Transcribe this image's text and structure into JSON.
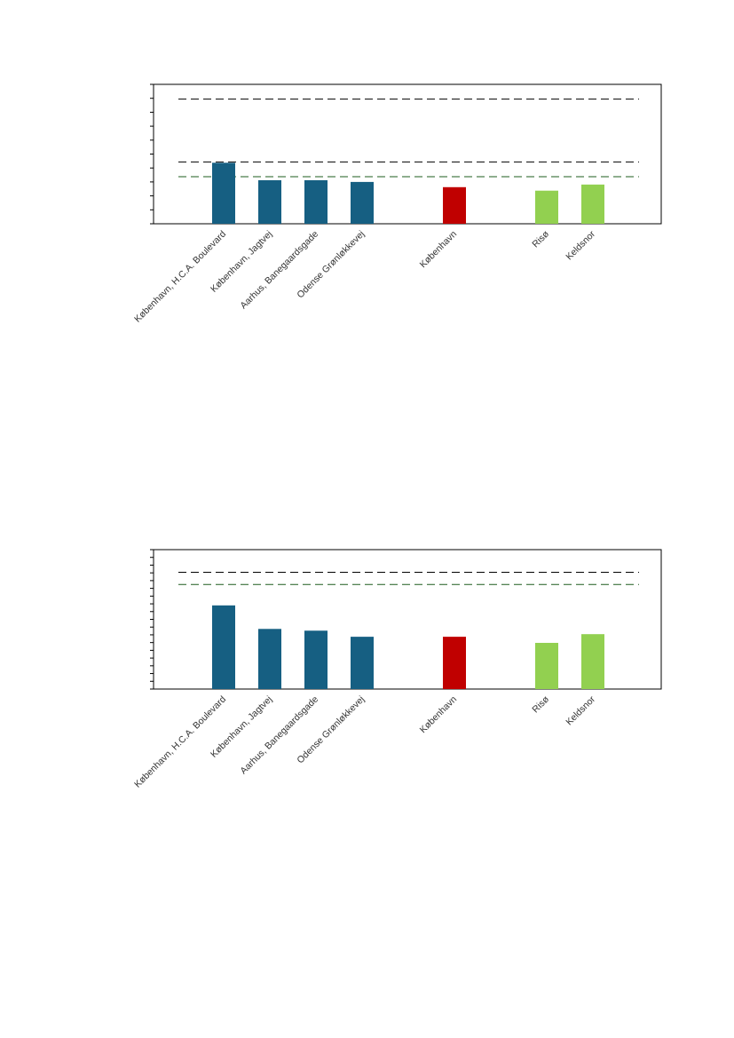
{
  "chart_data": [
    {
      "type": "bar",
      "categories": [
        "København, H.C.A. Boulevard",
        "København, Jagtvej",
        "Aarhus, Banegaardsgade",
        "Odense Grønløkkevej",
        "København",
        "Risø",
        "Keldsnor"
      ],
      "values": [
        7.0,
        5.0,
        5.0,
        4.8,
        4.2,
        3.8,
        4.5
      ],
      "ylim": [
        0,
        16
      ],
      "ytick_count": 10,
      "bar_colors": [
        "#165f82",
        "#165f82",
        "#165f82",
        "#165f82",
        "#c00000",
        "#92d050",
        "#92d050"
      ],
      "reference_lines": [
        {
          "value": 14.3,
          "color": "#000000"
        },
        {
          "value": 7.1,
          "color": "#000000"
        },
        {
          "value": 5.4,
          "color": "#1e5c1e"
        }
      ]
    },
    {
      "type": "bar",
      "categories": [
        "København, H.C.A. Boulevard",
        "København, Jagtvej",
        "Aarhus, Banegaardsgade",
        "Odense Grønløkkevej",
        "København",
        "Risø",
        "Keldsnor"
      ],
      "values": [
        9.6,
        6.9,
        6.7,
        6.0,
        6.0,
        5.3,
        6.3
      ],
      "ylim": [
        0,
        16
      ],
      "ytick_count": 18,
      "bar_colors": [
        "#165f82",
        "#165f82",
        "#165f82",
        "#165f82",
        "#c00000",
        "#92d050",
        "#92d050"
      ],
      "reference_lines": [
        {
          "value": 13.4,
          "color": "#000000"
        },
        {
          "value": 12.0,
          "color": "#1e5c1e"
        }
      ]
    }
  ]
}
